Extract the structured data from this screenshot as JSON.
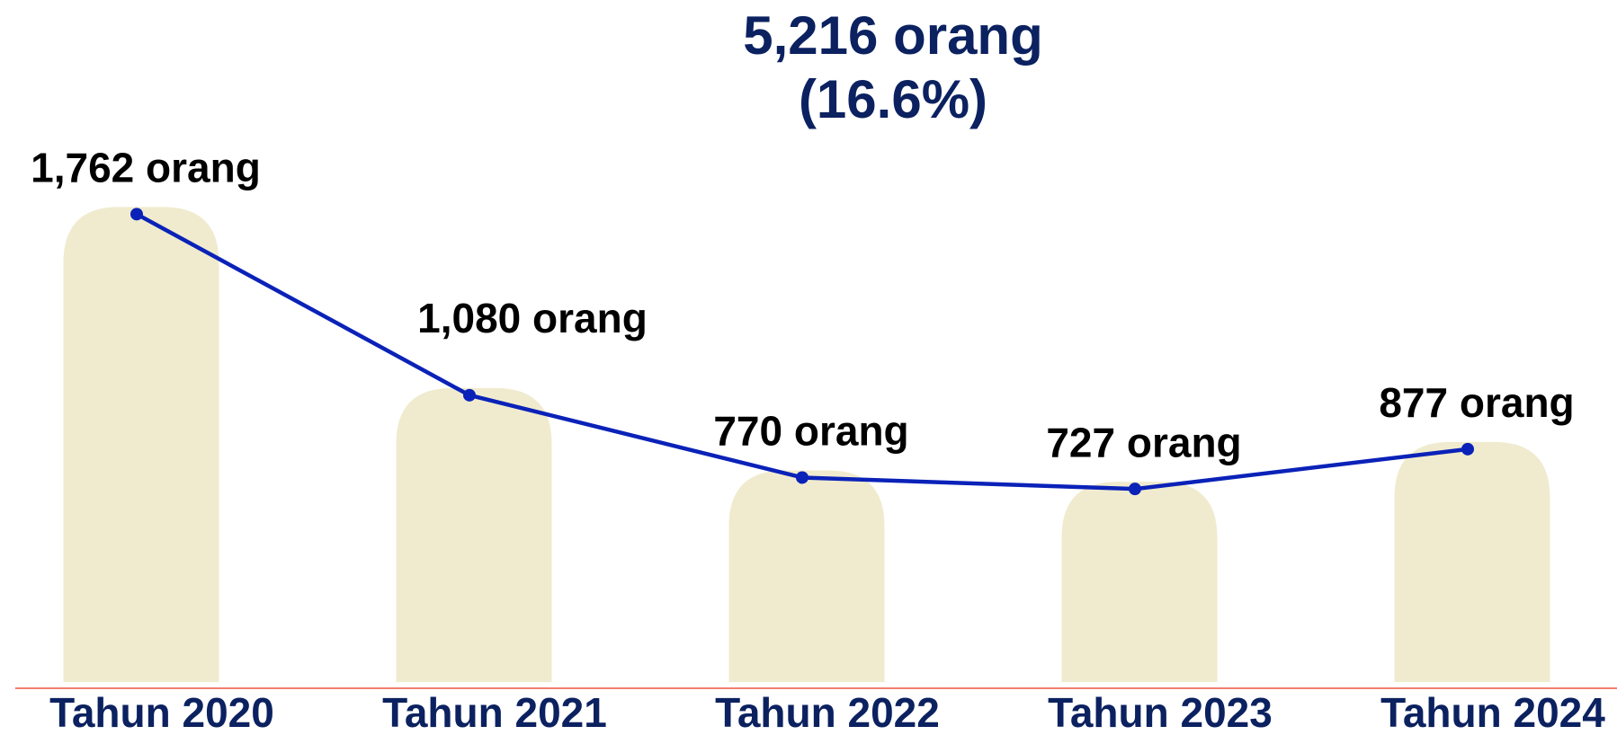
{
  "chart_data": {
    "type": "bar_line",
    "title": "5,216 orang",
    "subtitle": "(16.6%)",
    "categories": [
      "Tahun 2020",
      "Tahun 2021",
      "Tahun 2022",
      "Tahun 2023",
      "Tahun 2024"
    ],
    "values": [
      1762,
      1080,
      770,
      727,
      877
    ],
    "value_labels": [
      "1,762 orang",
      "1,080 orang",
      "770 orang",
      "727 orang",
      "877 orang"
    ],
    "bar_color": "#f0ebce",
    "line_color": "#0a22b8",
    "ylim": [
      0,
      2000
    ]
  }
}
